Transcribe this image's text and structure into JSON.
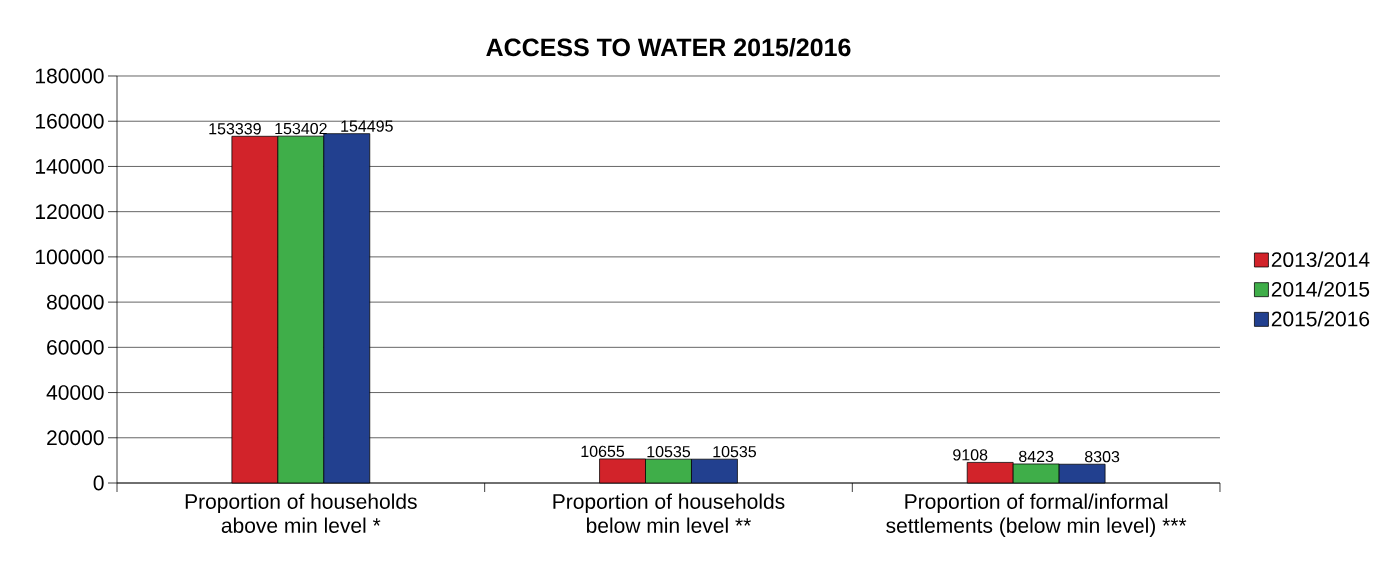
{
  "chart_data": {
    "type": "bar",
    "title": "ACCESS TO WATER 2015/2016",
    "categories": [
      "Proportion of households above min level *",
      "Proportion of households below min level **",
      "Proportion of formal/informal settlements (below min level) ***"
    ],
    "series": [
      {
        "name": "2013/2014",
        "color": "#d2232a",
        "values": [
          153339,
          10655,
          9108
        ]
      },
      {
        "name": "2014/2015",
        "color": "#3fae49",
        "values": [
          153402,
          10535,
          8423
        ]
      },
      {
        "name": "2015/2016",
        "color": "#22408f",
        "values": [
          154495,
          10535,
          8303
        ]
      }
    ],
    "ylim": [
      0,
      180000
    ],
    "yticks": [
      0,
      20000,
      40000,
      60000,
      80000,
      100000,
      120000,
      140000,
      160000,
      180000
    ],
    "grid": "y",
    "legend": "right",
    "data_labels": true
  }
}
